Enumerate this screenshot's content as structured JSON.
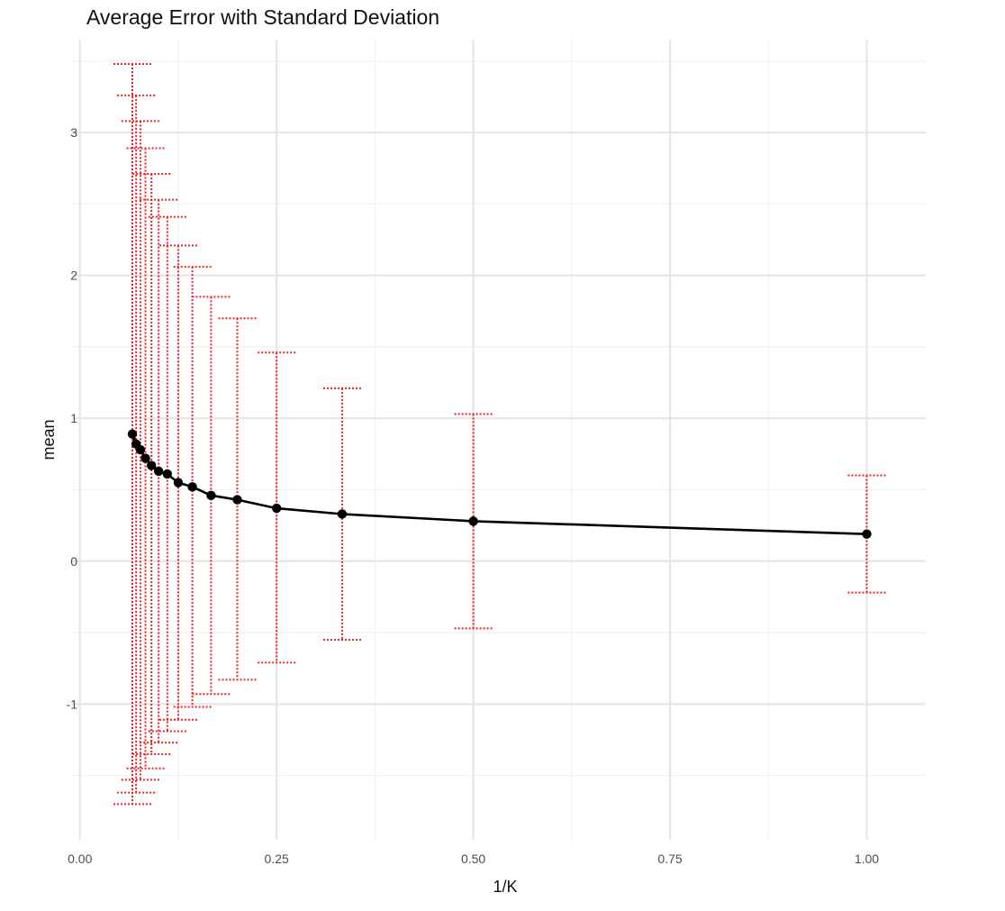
{
  "chart_data": {
    "type": "line",
    "title": "Average Error with Standard Deviation",
    "xlabel": "1/K",
    "ylabel": "mean",
    "xlim": [
      -0.01,
      1.075
    ],
    "ylim": [
      -1.95,
      3.65
    ],
    "x_ticks": [
      0.0,
      0.25,
      0.5,
      0.75,
      1.0
    ],
    "x_tick_labels": [
      "0.00",
      "0.25",
      "0.50",
      "0.75",
      "1.00"
    ],
    "y_ticks": [
      -1,
      0,
      1,
      2,
      3
    ],
    "y_tick_labels": [
      "-1",
      "0",
      "1",
      "2",
      "3"
    ],
    "grid": true,
    "line_color": "#000000",
    "errorbar_color": "#e8242b",
    "series": [
      {
        "x": [
          1.0,
          0.5,
          0.3333,
          0.25,
          0.2,
          0.1667,
          0.1429,
          0.125,
          0.1111,
          0.1,
          0.0909,
          0.0833,
          0.0769,
          0.0714,
          0.0667
        ],
        "mean": [
          0.19,
          0.28,
          0.33,
          0.37,
          0.43,
          0.46,
          0.52,
          0.55,
          0.61,
          0.63,
          0.67,
          0.72,
          0.78,
          0.82,
          0.89
        ],
        "upper": [
          0.6,
          1.03,
          1.21,
          1.46,
          1.7,
          1.85,
          2.06,
          2.21,
          2.41,
          2.53,
          2.71,
          2.89,
          3.08,
          3.26,
          3.48
        ],
        "lower": [
          -0.22,
          -0.47,
          -0.55,
          -0.71,
          -0.83,
          -0.93,
          -1.02,
          -1.11,
          -1.19,
          -1.27,
          -1.35,
          -1.45,
          -1.53,
          -1.62,
          -1.7
        ]
      }
    ]
  }
}
